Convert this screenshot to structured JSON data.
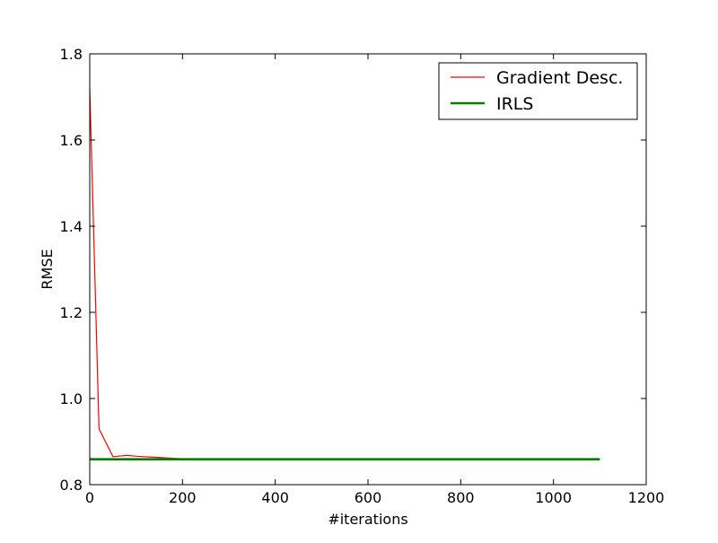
{
  "chart_data": {
    "type": "line",
    "title": "",
    "xlabel": "#iterations",
    "ylabel": "RMSE",
    "xlim": [
      0,
      1200
    ],
    "ylim": [
      0.8,
      1.8
    ],
    "xticks": [
      "0",
      "200",
      "400",
      "600",
      "800",
      "1000",
      "1200"
    ],
    "yticks": [
      "0.8",
      "1.0",
      "1.2",
      "1.4",
      "1.6",
      "1.8"
    ],
    "grid": false,
    "legend_position": "top-right",
    "series": [
      {
        "name": "Gradient Desc.",
        "color": "#ff0000",
        "x": [
          0,
          20,
          50,
          80,
          100,
          150,
          200,
          300,
          400,
          600,
          800,
          1000,
          1100
        ],
        "y": [
          1.72,
          0.93,
          0.865,
          0.868,
          0.866,
          0.863,
          0.86,
          0.86,
          0.86,
          0.86,
          0.86,
          0.86,
          0.86
        ]
      },
      {
        "name": "IRLS",
        "color": "#008000",
        "x": [
          0,
          1100
        ],
        "y": [
          0.859,
          0.859
        ]
      }
    ]
  }
}
